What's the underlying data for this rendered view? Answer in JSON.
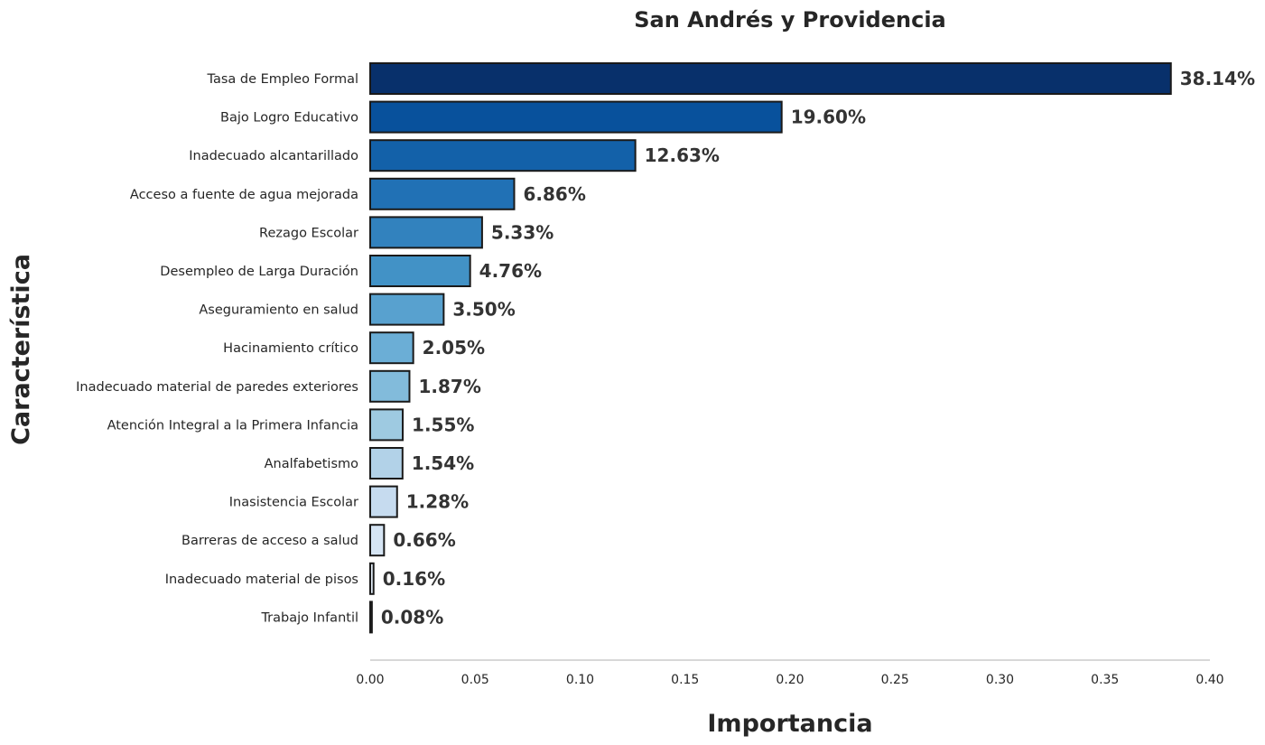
{
  "chart_data": {
    "type": "bar",
    "orientation": "horizontal",
    "title": "San Andrés y Providencia",
    "xlabel": "Importancia",
    "ylabel": "Característica",
    "xlim": [
      0,
      0.4
    ],
    "xticks": [
      0.0,
      0.05,
      0.1,
      0.15,
      0.2,
      0.25,
      0.3,
      0.35,
      0.4
    ],
    "xtick_labels": [
      "0.00",
      "0.05",
      "0.10",
      "0.15",
      "0.20",
      "0.25",
      "0.30",
      "0.35",
      "0.40"
    ],
    "grid": false,
    "categories": [
      "Tasa de Empleo Formal",
      "Bajo Logro Educativo",
      "Inadecuado alcantarillado",
      "Acceso a fuente de agua mejorada",
      "Rezago Escolar",
      "Desempleo de Larga Duración",
      "Aseguramiento en salud",
      "Hacinamiento crítico",
      "Inadecuado material de paredes exteriores",
      "Atención Integral a la Primera Infancia",
      "Analfabetismo",
      "Inasistencia Escolar",
      "Barreras de acceso a salud",
      "Inadecuado material de pisos",
      "Trabajo Infantil"
    ],
    "values": [
      0.3814,
      0.196,
      0.1263,
      0.0686,
      0.0533,
      0.0476,
      0.035,
      0.0205,
      0.0187,
      0.0155,
      0.0154,
      0.0128,
      0.0066,
      0.0016,
      0.0008
    ],
    "value_labels": [
      "38.14%",
      "19.60%",
      "12.63%",
      "6.86%",
      "5.33%",
      "4.76%",
      "3.50%",
      "2.05%",
      "1.87%",
      "1.55%",
      "1.54%",
      "1.28%",
      "0.66%",
      "0.16%",
      "0.08%"
    ],
    "colors": [
      "#08306b",
      "#08519c",
      "#1361a9",
      "#2171b5",
      "#3282be",
      "#4292c6",
      "#58a1cf",
      "#6baed6",
      "#82bbdb",
      "#9ecae1",
      "#b2d2e8",
      "#c6dbef",
      "#d6e5f4",
      "#e3eef9",
      "#f7fbff"
    ]
  }
}
